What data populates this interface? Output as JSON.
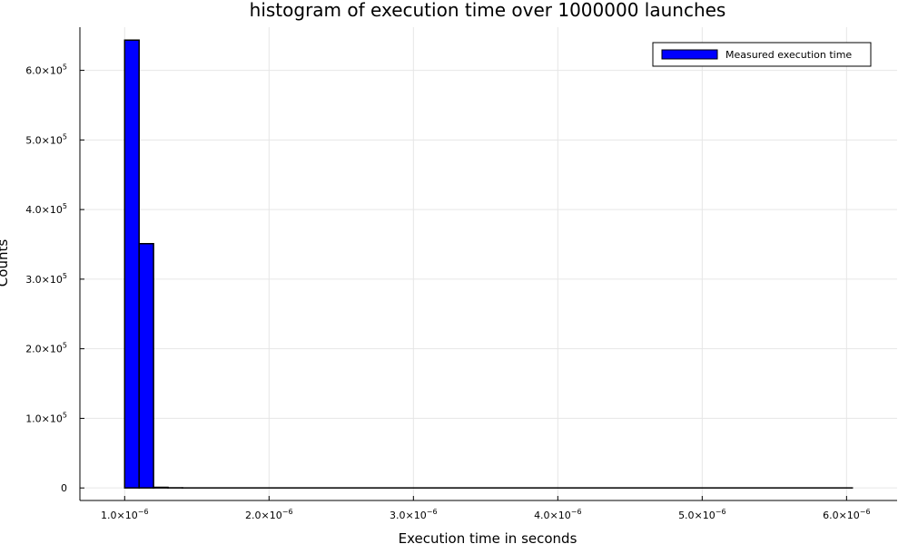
{
  "chart_data": {
    "type": "bar",
    "title": "histogram of execution time over 1000000 launches",
    "xlabel": "Execution time in seconds",
    "ylabel": "Counts",
    "xlim": [
      6.9e-07,
      6.35e-06
    ],
    "ylim": [
      -18000,
      662000
    ],
    "xticks": [
      {
        "value": 1e-06,
        "mantissa": "1.0",
        "exponent": "−6"
      },
      {
        "value": 2e-06,
        "mantissa": "2.0",
        "exponent": "−6"
      },
      {
        "value": 3e-06,
        "mantissa": "3.0",
        "exponent": "−6"
      },
      {
        "value": 4e-06,
        "mantissa": "4.0",
        "exponent": "−6"
      },
      {
        "value": 5e-06,
        "mantissa": "5.0",
        "exponent": "−6"
      },
      {
        "value": 6e-06,
        "mantissa": "6.0",
        "exponent": "−6"
      }
    ],
    "yticks": [
      {
        "value": 0,
        "mantissa": "0",
        "exponent": ""
      },
      {
        "value": 100000,
        "mantissa": "1.0",
        "exponent": "5"
      },
      {
        "value": 200000,
        "mantissa": "2.0",
        "exponent": "5"
      },
      {
        "value": 300000,
        "mantissa": "3.0",
        "exponent": "5"
      },
      {
        "value": 400000,
        "mantissa": "4.0",
        "exponent": "5"
      },
      {
        "value": 500000,
        "mantissa": "5.0",
        "exponent": "5"
      },
      {
        "value": 600000,
        "mantissa": "6.0",
        "exponent": "5"
      }
    ],
    "grid": true,
    "legend_position": "top-right",
    "series": [
      {
        "name": "Measured execution time",
        "color": "#0000ff",
        "edge_color": "#000000",
        "bins": [
          {
            "x0": 1e-06,
            "x1": 1.1e-06,
            "count": 643500
          },
          {
            "x0": 1.1e-06,
            "x1": 1.2e-06,
            "count": 351000
          },
          {
            "x0": 1.2e-06,
            "x1": 1.3e-06,
            "count": 900
          },
          {
            "x0": 1.3e-06,
            "x1": 1.4e-06,
            "count": 300
          },
          {
            "x0": 1.4e-06,
            "x1": 6.04e-06,
            "count": 100
          }
        ]
      }
    ]
  }
}
